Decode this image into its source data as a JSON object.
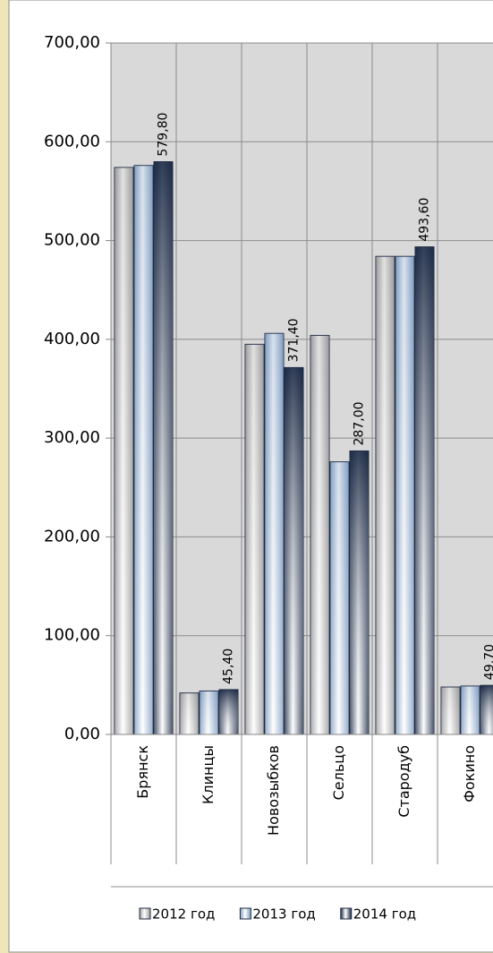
{
  "chart_data": {
    "type": "bar",
    "categories": [
      "Брянск",
      "Клинцы",
      "Новозыбков",
      "Сельцо",
      "Стародуб",
      "Фокино"
    ],
    "series": [
      {
        "name": "2012 год",
        "color": "#9a9a9a",
        "values": [
          574,
          42,
          395,
          404,
          484,
          48
        ]
      },
      {
        "name": "2013 год",
        "color": "#7f9cc0",
        "values": [
          576,
          44,
          406,
          276,
          484,
          49
        ]
      },
      {
        "name": "2014 год",
        "color": "#1c2a45",
        "values": [
          579.8,
          45.4,
          371.4,
          287,
          493.6,
          49.7
        ],
        "value_labels": [
          "579,80",
          "45,40",
          "371,40",
          "287,00",
          "493,60",
          "49,70"
        ]
      }
    ],
    "ylim": [
      0,
      700
    ],
    "yticks": [
      {
        "value": 0,
        "label": "0,00"
      },
      {
        "value": 100,
        "label": "100,00"
      },
      {
        "value": 200,
        "label": "200,00"
      },
      {
        "value": 300,
        "label": "300,00"
      },
      {
        "value": 400,
        "label": "400,00"
      },
      {
        "value": 500,
        "label": "500,00"
      },
      {
        "value": 600,
        "label": "600,00"
      },
      {
        "value": 700,
        "label": "700,00"
      }
    ],
    "grid": true,
    "legend": "bottom"
  }
}
